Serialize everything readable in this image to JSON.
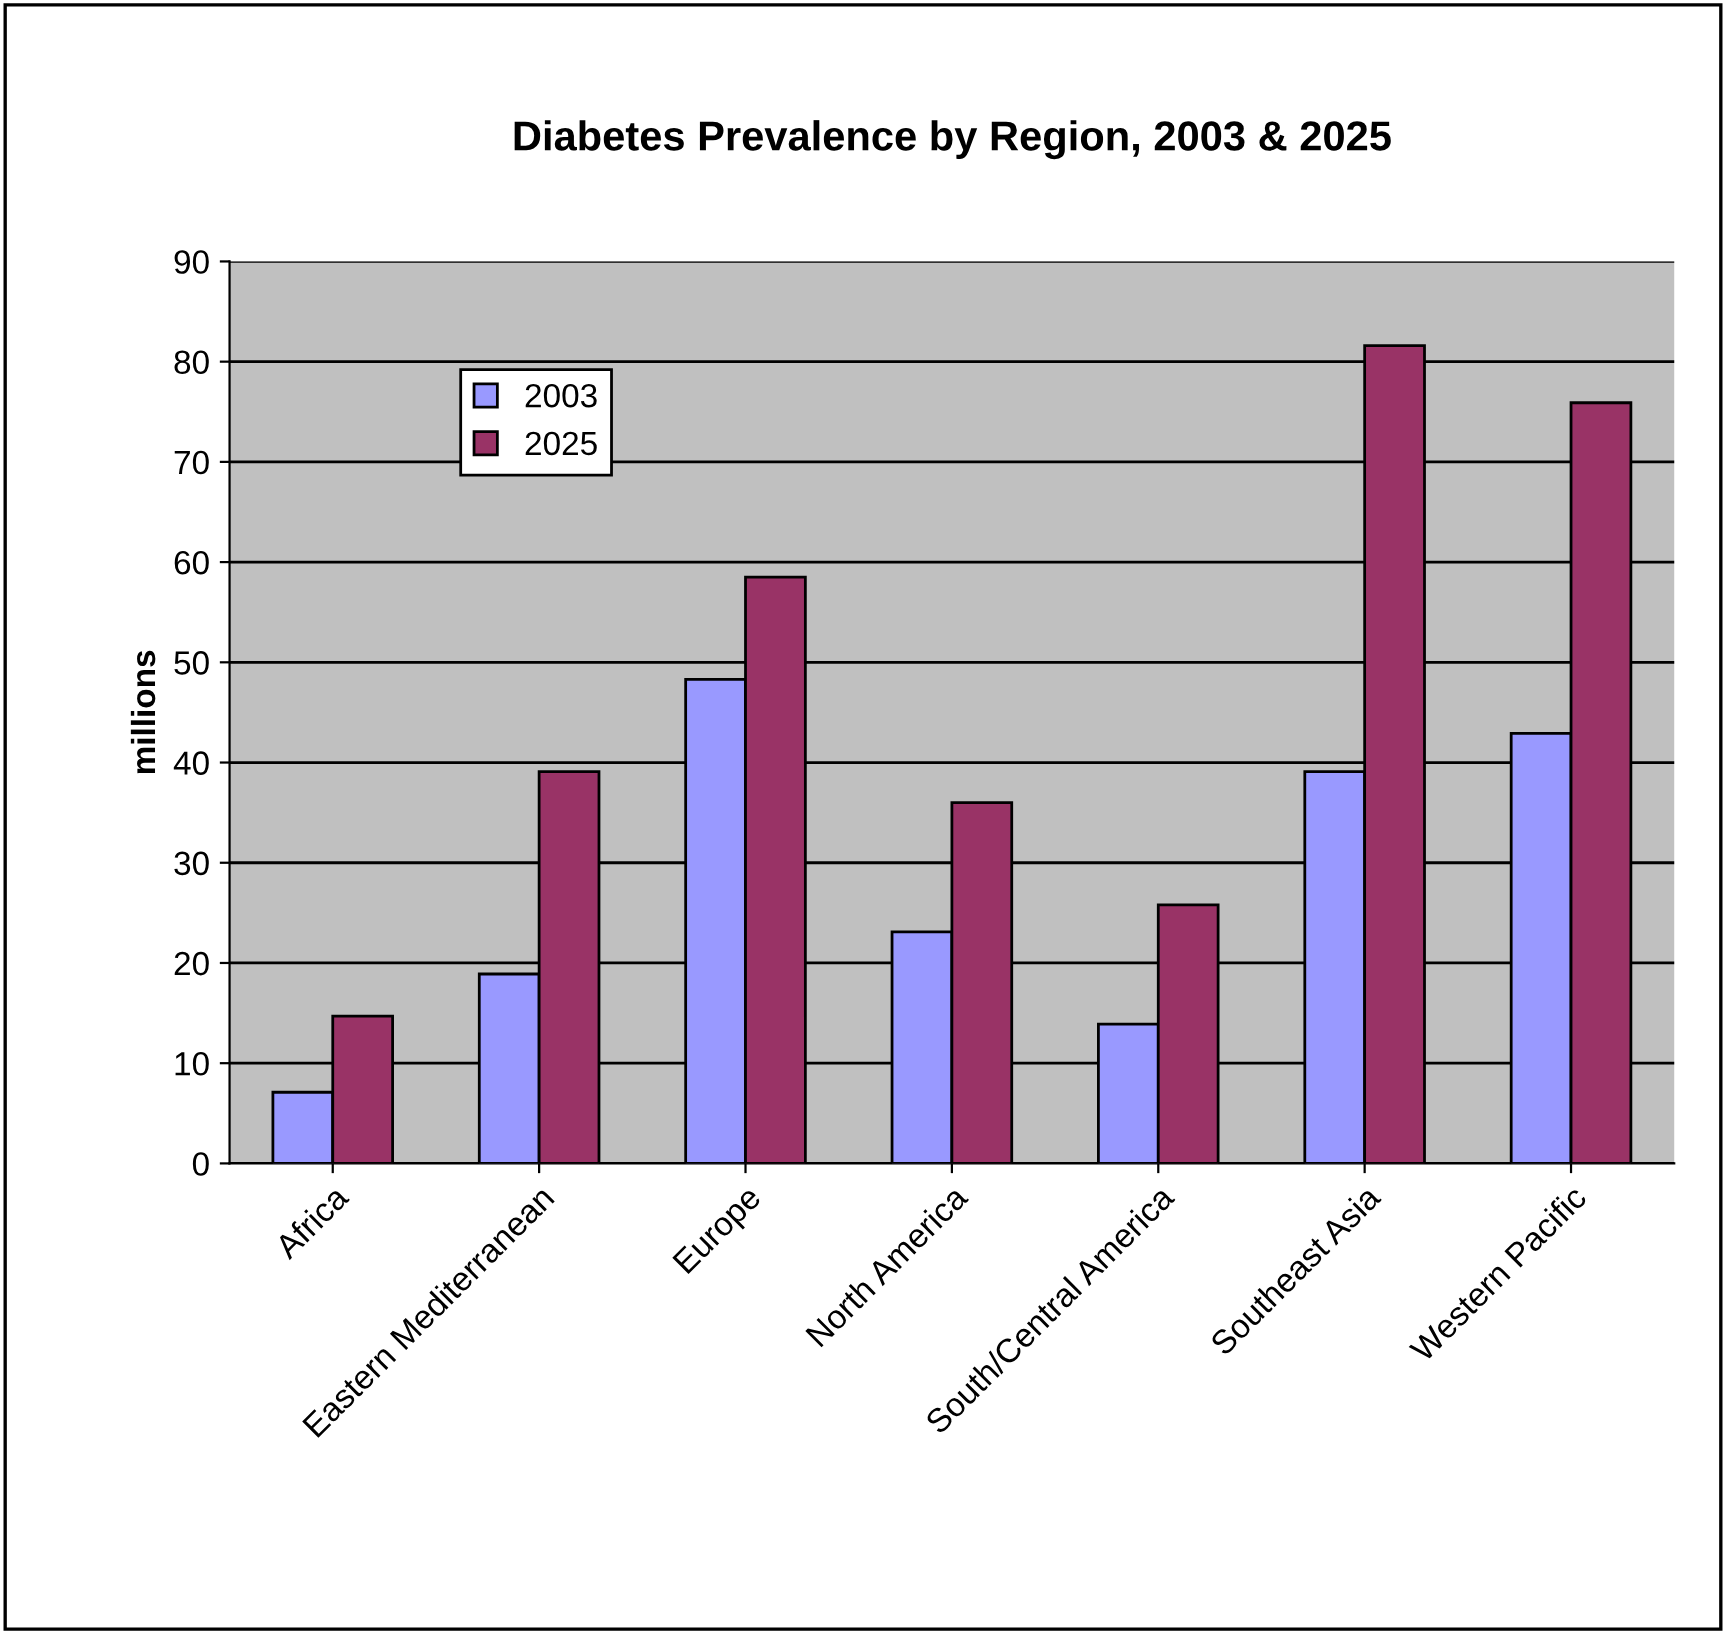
{
  "chart_data": {
    "type": "bar",
    "title": "Diabetes Prevalence by Region, 2003 & 2025",
    "ylabel": "millions",
    "categories": [
      "Africa",
      "Eastern Mediterranean",
      "Europe",
      "North America",
      "South/Central America",
      "Southeast Asia",
      "Western Pacific"
    ],
    "series": [
      {
        "name": "2003",
        "color": "#9999ff",
        "values": [
          7.1,
          18.9,
          48.3,
          23.1,
          13.9,
          39.1,
          42.9
        ]
      },
      {
        "name": "2025",
        "color": "#993366",
        "values": [
          14.7,
          39.1,
          58.5,
          36.0,
          25.8,
          81.6,
          75.9
        ]
      }
    ],
    "ylim": [
      0,
      90
    ],
    "yticks": [
      0,
      10,
      20,
      30,
      40,
      50,
      60,
      70,
      80,
      90
    ],
    "grid": "y",
    "legend": "top left"
  }
}
